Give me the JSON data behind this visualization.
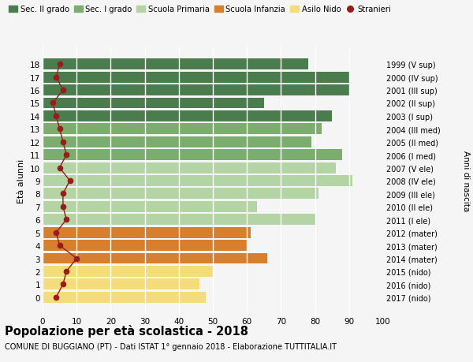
{
  "ages": [
    18,
    17,
    16,
    15,
    14,
    13,
    12,
    11,
    10,
    9,
    8,
    7,
    6,
    5,
    4,
    3,
    2,
    1,
    0
  ],
  "bar_values": [
    78,
    90,
    90,
    65,
    85,
    82,
    79,
    88,
    86,
    91,
    81,
    63,
    80,
    61,
    60,
    66,
    50,
    46,
    48
  ],
  "stranieri_values": [
    5,
    4,
    6,
    3,
    4,
    5,
    6,
    7,
    5,
    8,
    6,
    6,
    7,
    4,
    5,
    10,
    7,
    6,
    4
  ],
  "right_labels": [
    "1999 (V sup)",
    "2000 (IV sup)",
    "2001 (III sup)",
    "2002 (II sup)",
    "2003 (I sup)",
    "2004 (III med)",
    "2005 (II med)",
    "2006 (I med)",
    "2007 (V ele)",
    "2008 (IV ele)",
    "2009 (III ele)",
    "2010 (II ele)",
    "2011 (I ele)",
    "2012 (mater)",
    "2013 (mater)",
    "2014 (mater)",
    "2015 (nido)",
    "2016 (nido)",
    "2017 (nido)"
  ],
  "colors": {
    "sec_ii": "#4a7c4e",
    "sec_i": "#7aad6e",
    "primaria": "#b5d4a5",
    "infanzia": "#d87f2e",
    "nido": "#f5dc7a",
    "stranieri": "#9b1a1a",
    "background": "#f5f5f5",
    "grid": "#ffffff"
  },
  "legend_labels": [
    "Sec. II grado",
    "Sec. I grado",
    "Scuola Primaria",
    "Scuola Infanzia",
    "Asilo Nido",
    "Stranieri"
  ],
  "title": "Popolazione per età scolastica - 2018",
  "subtitle": "COMUNE DI BUGGIANO (PT) - Dati ISTAT 1° gennaio 2018 - Elaborazione TUTTITALIA.IT",
  "ylabel_left": "Età alunni",
  "ylabel_right": "Anni di nascita",
  "xlim": [
    0,
    100
  ],
  "xticks": [
    0,
    10,
    20,
    30,
    40,
    50,
    60,
    70,
    80,
    90,
    100
  ]
}
